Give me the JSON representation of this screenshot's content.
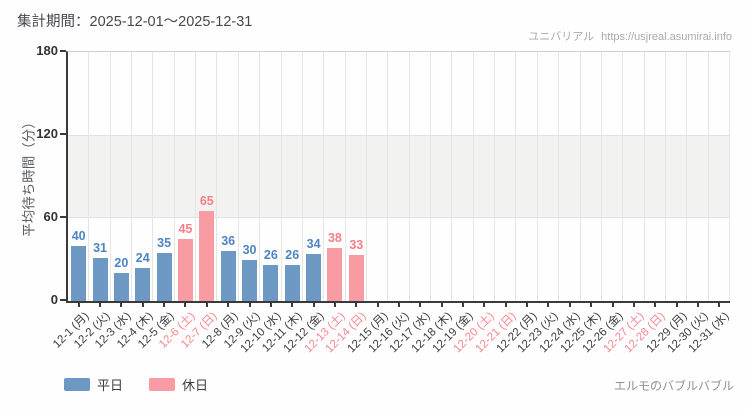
{
  "header": {
    "watermark_site": "ユニバリアル",
    "watermark_url": "https://usjreal.asumirai.info"
  },
  "chart_data": {
    "type": "bar",
    "title": "集計期間：2025-12-01～2025-12-31",
    "xlabel": "",
    "ylabel": "平均待ち時間（分）",
    "ylim": [
      0,
      180
    ],
    "yticks": [
      0,
      60,
      120,
      180
    ],
    "grid": true,
    "legend_position": "bottom",
    "categories": [
      "12-1 (月)",
      "12-2 (火)",
      "12-3 (水)",
      "12-4 (木)",
      "12-5 (金)",
      "12-6 (土)",
      "12-7 (日)",
      "12-8 (月)",
      "12-9 (火)",
      "12-10 (水)",
      "12-11 (木)",
      "12-12 (金)",
      "12-13 (土)",
      "12-14 (日)",
      "12-15 (月)",
      "12-16 (火)",
      "12-17 (水)",
      "12-18 (木)",
      "12-19 (金)",
      "12-20 (土)",
      "12-21 (日)",
      "12-22 (月)",
      "12-23 (火)",
      "12-24 (水)",
      "12-25 (木)",
      "12-26 (金)",
      "12-27 (土)",
      "12-28 (日)",
      "12-29 (月)",
      "12-30 (火)",
      "12-31 (水)"
    ],
    "values": [
      40,
      31,
      20,
      24,
      35,
      45,
      65,
      36,
      30,
      26,
      26,
      34,
      38,
      33,
      null,
      null,
      null,
      null,
      null,
      null,
      null,
      null,
      null,
      null,
      null,
      null,
      null,
      null,
      null,
      null,
      null
    ],
    "holidays": [
      false,
      false,
      false,
      false,
      false,
      true,
      true,
      false,
      false,
      false,
      false,
      false,
      true,
      true,
      false,
      false,
      false,
      false,
      false,
      true,
      true,
      false,
      false,
      false,
      false,
      false,
      true,
      true,
      false,
      false,
      false
    ],
    "series": [
      {
        "name": "平日",
        "role": "weekday"
      },
      {
        "name": "休日",
        "role": "holiday"
      }
    ]
  },
  "colors": {
    "weekday_bar": "#6d98c3",
    "holiday_bar": "#f99ba2",
    "weekday_value_label": "#4c85c2",
    "holiday_value_label": "#f87e87",
    "weekday_tick_label": "#3c3c3c",
    "holiday_tick_label": "#f9868e",
    "band": "#f2f2f1",
    "grid_line": "#e4e6e4",
    "axis_line": "#3a3a3a"
  },
  "footer": {
    "attraction_label": "エルモのバブルバブル"
  }
}
